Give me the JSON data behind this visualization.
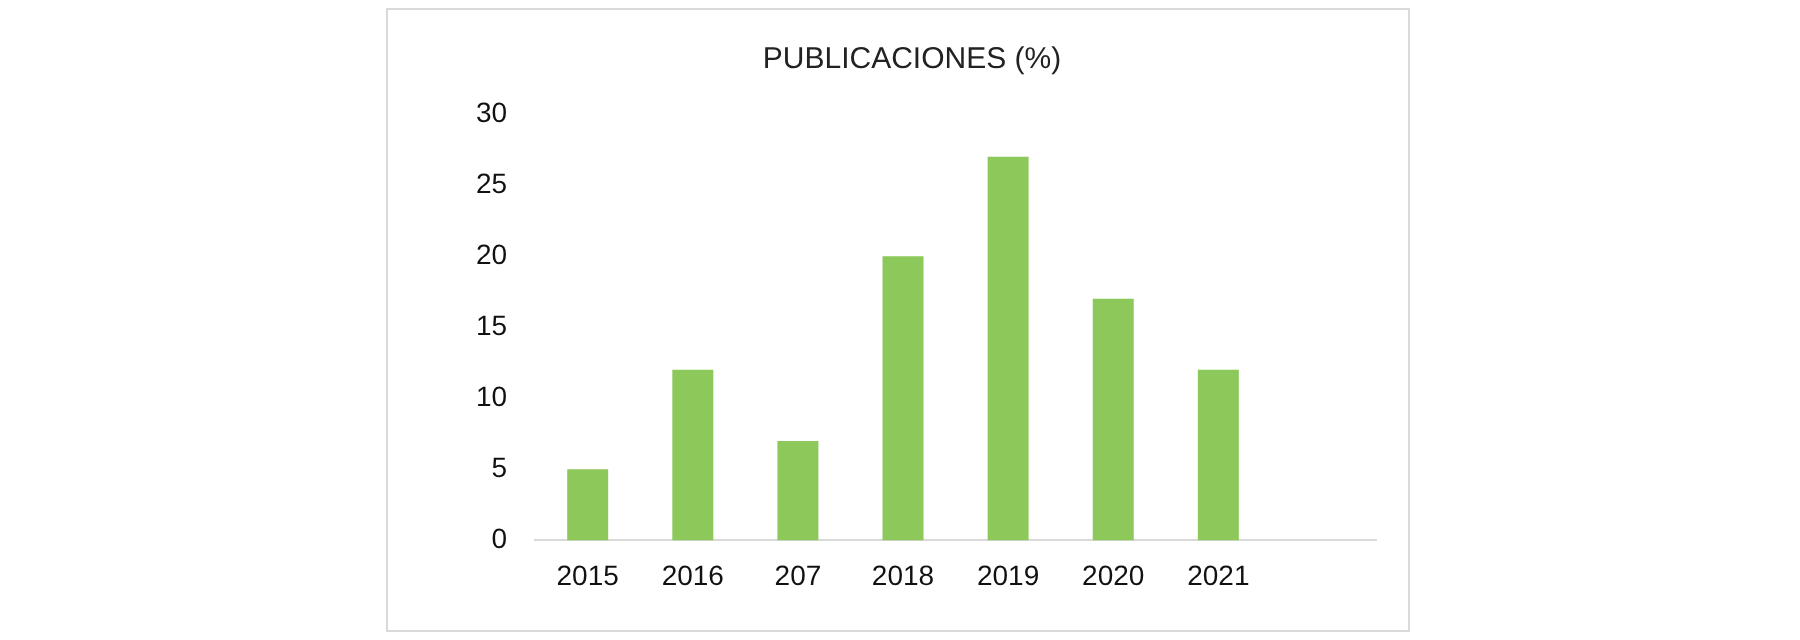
{
  "chart_data": {
    "type": "bar",
    "title": "PUBLICACIONES (%)",
    "categories": [
      "2015",
      "2016",
      "207",
      "2018",
      "2019",
      "2020",
      "2021",
      null
    ],
    "values": [
      5,
      12,
      7,
      20,
      27,
      17,
      12,
      null
    ],
    "color": "#8cc85a",
    "ylim": [
      0,
      30
    ],
    "yticks": [
      0,
      5,
      10,
      15,
      20,
      25,
      30
    ],
    "grid": false,
    "legend": false
  }
}
